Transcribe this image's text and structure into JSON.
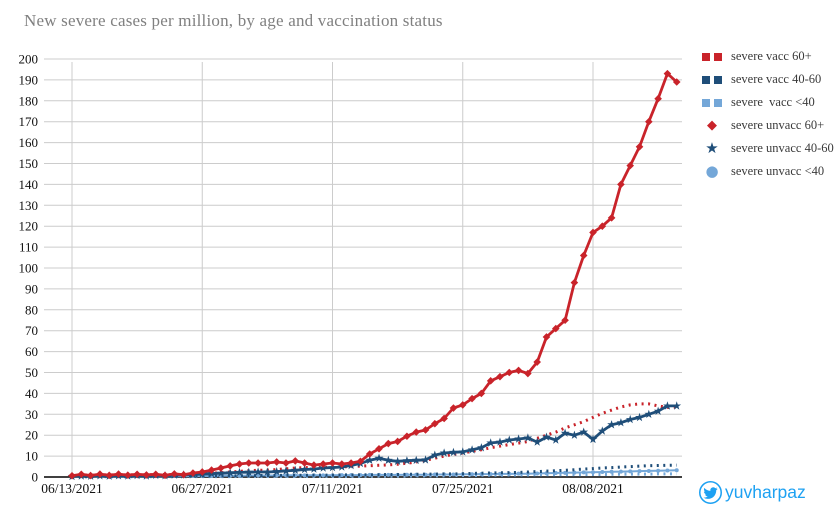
{
  "title": "New severe cases per million, by age and vaccination status",
  "watermark": {
    "handle": "yuvharpaz",
    "icon": "twitter-bird-icon",
    "color": "#1da1f2"
  },
  "colors": {
    "red": "#c9232a",
    "navy": "#1f4e79",
    "lightblue": "#74a7d8",
    "grid": "#cccccc",
    "axis": "#000000",
    "title_grey": "#808080",
    "tick_label": "#111111",
    "twitter_blue": "#1da1f2"
  },
  "chart_data": {
    "type": "line",
    "title": "New severe cases per million, by age and vaccination status",
    "xlabel": "",
    "ylabel": "",
    "x_start_date": "06/13/2021",
    "x_end_date": "08/17/2021",
    "x_points": 66,
    "x_tick_labels": [
      "06/13/2021",
      "06/27/2021",
      "07/11/2021",
      "07/25/2021",
      "08/08/2021"
    ],
    "x_tick_indices": [
      0,
      14,
      28,
      42,
      56
    ],
    "ylim": [
      0,
      200
    ],
    "y_tick_step": 10,
    "grid": true,
    "legend_position": "right",
    "series": [
      {
        "name": "severe vacc 60+",
        "color": "#c9232a",
        "line_style": "dotted",
        "marker": "none",
        "z": 4,
        "values": [
          0.8,
          0.9,
          0.9,
          1.0,
          1.0,
          1.0,
          1.0,
          1.1,
          1.1,
          1.1,
          1.2,
          1.2,
          1.3,
          1.4,
          1.5,
          1.8,
          2.1,
          2.4,
          2.7,
          3.0,
          3.2,
          3.3,
          3.6,
          3.9,
          4.3,
          4.5,
          4.6,
          4.7,
          4.8,
          4.9,
          5.0,
          5.2,
          5.4,
          5.6,
          5.8,
          6.1,
          6.6,
          7.2,
          8.0,
          9.0,
          10.0,
          10.8,
          11.5,
          12.3,
          13.0,
          14.0,
          14.8,
          15.5,
          16.2,
          17.0,
          18.5,
          20.0,
          21.5,
          23.5,
          25.0,
          26.5,
          28.5,
          30.5,
          32.0,
          33.5,
          34.5,
          35.0,
          35.0,
          34.0,
          33.3,
          33.5
        ]
      },
      {
        "name": "severe vacc 40-60",
        "color": "#1f4e79",
        "line_style": "dotted",
        "marker": "none",
        "z": 3,
        "values": [
          0.2,
          0.2,
          0.2,
          0.3,
          0.3,
          0.3,
          0.3,
          0.3,
          0.3,
          0.4,
          0.4,
          0.4,
          0.4,
          0.5,
          0.5,
          0.5,
          0.5,
          0.6,
          0.6,
          0.6,
          0.7,
          0.7,
          0.7,
          0.8,
          0.8,
          0.8,
          0.9,
          0.9,
          0.9,
          1.0,
          1.0,
          1.0,
          1.1,
          1.1,
          1.2,
          1.2,
          1.3,
          1.3,
          1.4,
          1.4,
          1.5,
          1.5,
          1.6,
          1.7,
          1.8,
          1.9,
          2.0,
          2.1,
          2.2,
          2.4,
          2.6,
          2.8,
          3.0,
          3.2,
          3.5,
          3.8,
          4.0,
          4.3,
          4.5,
          4.8,
          5.0,
          5.2,
          5.4,
          5.5,
          5.6,
          5.7
        ]
      },
      {
        "name": "severe  vacc <40",
        "color": "#74a7d8",
        "line_style": "dotted",
        "marker": "none",
        "z": 1,
        "values": [
          0.1,
          0.1,
          0.1,
          0.1,
          0.1,
          0.1,
          0.1,
          0.1,
          0.1,
          0.2,
          0.2,
          0.2,
          0.2,
          0.2,
          0.2,
          0.2,
          0.2,
          0.2,
          0.3,
          0.3,
          0.3,
          0.3,
          0.3,
          0.3,
          0.3,
          0.3,
          0.4,
          0.4,
          0.4,
          0.4,
          0.4,
          0.4,
          0.5,
          0.5,
          0.5,
          0.5,
          0.5,
          0.6,
          0.6,
          0.6,
          0.6,
          0.7,
          0.7,
          0.7,
          0.8,
          0.8,
          0.8,
          0.9,
          0.9,
          0.9,
          1.0,
          1.0,
          1.0,
          1.1,
          1.1,
          1.1,
          1.2,
          1.2,
          1.3,
          1.3,
          1.4,
          1.4,
          1.4,
          1.5,
          1.5,
          1.5
        ]
      },
      {
        "name": "severe unvacc 60+",
        "color": "#c9232a",
        "line_style": "solid",
        "marker": "diamond",
        "z": 6,
        "values": [
          0.6,
          1.3,
          0.7,
          1.4,
          0.8,
          1.4,
          0.9,
          1.3,
          1.0,
          1.3,
          0.8,
          1.5,
          1.1,
          1.9,
          2.4,
          3.3,
          4.3,
          5.3,
          6.2,
          6.7,
          6.7,
          6.7,
          7.2,
          6.7,
          7.7,
          6.7,
          5.7,
          6.2,
          6.7,
          6.2,
          6.7,
          7.5,
          11,
          13.5,
          16,
          17,
          19.5,
          21.5,
          22.5,
          25.5,
          28,
          33,
          34.5,
          37.5,
          40,
          46,
          48,
          50,
          51,
          49.5,
          55,
          67,
          71,
          75,
          93,
          106,
          117,
          120,
          124,
          140,
          149,
          158,
          170,
          181,
          193,
          189
        ]
      },
      {
        "name": "severe unvacc 40-60",
        "color": "#1f4e79",
        "line_style": "solid",
        "marker": "star",
        "z": 5,
        "values": [
          0.3,
          0.5,
          0.4,
          0.6,
          0.4,
          0.6,
          0.5,
          0.7,
          0.5,
          0.8,
          0.6,
          0.9,
          1.0,
          1.2,
          1.4,
          1.6,
          1.8,
          2.0,
          2.2,
          2.3,
          2.4,
          2.4,
          2.6,
          2.9,
          3.2,
          3.6,
          3.8,
          4.3,
          4.5,
          4.8,
          5.5,
          6.5,
          8.0,
          9.0,
          8.0,
          7.5,
          7.8,
          8.0,
          8.2,
          10.5,
          11.5,
          11.8,
          12.0,
          13.0,
          14.0,
          16.3,
          16.7,
          17.7,
          18.2,
          18.7,
          16.7,
          19.1,
          17.7,
          21.0,
          20.0,
          21.5,
          18.0,
          22.0,
          25.0,
          26.0,
          27.5,
          28.5,
          30.0,
          31.5,
          34.0,
          34.0
        ]
      },
      {
        "name": "severe unvacc <40",
        "color": "#74a7d8",
        "line_style": "solid",
        "marker": "circle",
        "z": 2,
        "values": [
          0.3,
          0.4,
          0.3,
          0.4,
          0.3,
          0.4,
          0.3,
          0.4,
          0.4,
          0.4,
          0.4,
          0.5,
          0.4,
          0.5,
          0.5,
          0.5,
          0.6,
          0.6,
          0.6,
          0.7,
          0.7,
          0.7,
          0.7,
          0.8,
          0.8,
          0.8,
          0.8,
          0.8,
          0.8,
          0.9,
          0.9,
          0.9,
          1.0,
          1.0,
          1.0,
          1.0,
          1.1,
          1.1,
          1.1,
          1.2,
          1.2,
          1.2,
          1.3,
          1.3,
          1.4,
          1.4,
          1.5,
          1.5,
          1.6,
          1.6,
          1.7,
          1.8,
          1.9,
          2.0,
          2.1,
          2.2,
          2.3,
          2.4,
          2.5,
          2.6,
          2.7,
          2.8,
          2.9,
          3.0,
          3.1,
          3.2
        ]
      }
    ]
  }
}
